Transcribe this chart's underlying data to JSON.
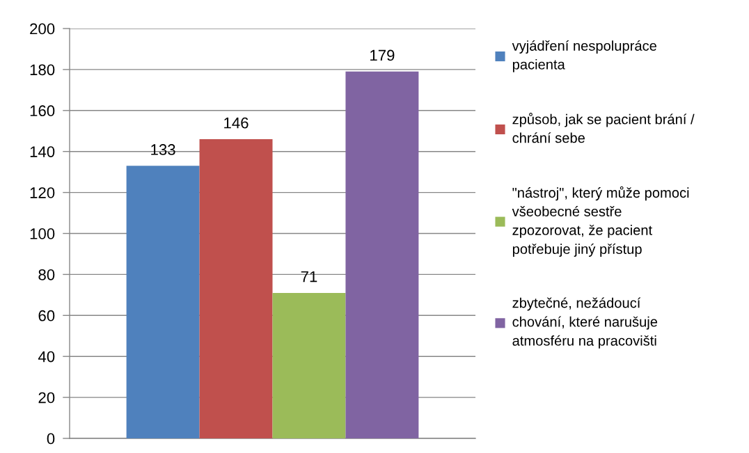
{
  "chart_data": {
    "type": "bar",
    "categories": [
      null
    ],
    "series": [
      {
        "name": "vyjádření nespolupráce\npacienta",
        "color": "#4f81bd",
        "values": [
          133
        ]
      },
      {
        "name": "způsob, jak se pacient brání /\nchrání sebe",
        "color": "#c0504d",
        "values": [
          146
        ]
      },
      {
        "name": "\"nástroj\", který může pomoci\nvšeobecné sestře\nzpozorovat, že pacient\npotřebuje jiný přístup",
        "color": "#9bbb59",
        "values": [
          71
        ]
      },
      {
        "name": "zbytečné, nežádoucí\nchování, které narušuje\natmosféru na pracovišti",
        "color": "#8064a2",
        "values": [
          179
        ]
      }
    ],
    "ylim": [
      0,
      200
    ],
    "yticks": [
      0,
      20,
      40,
      60,
      80,
      100,
      120,
      140,
      160,
      180,
      200
    ],
    "grid": "y",
    "legend": "right",
    "data_labels": true,
    "tick_labels": "y"
  }
}
